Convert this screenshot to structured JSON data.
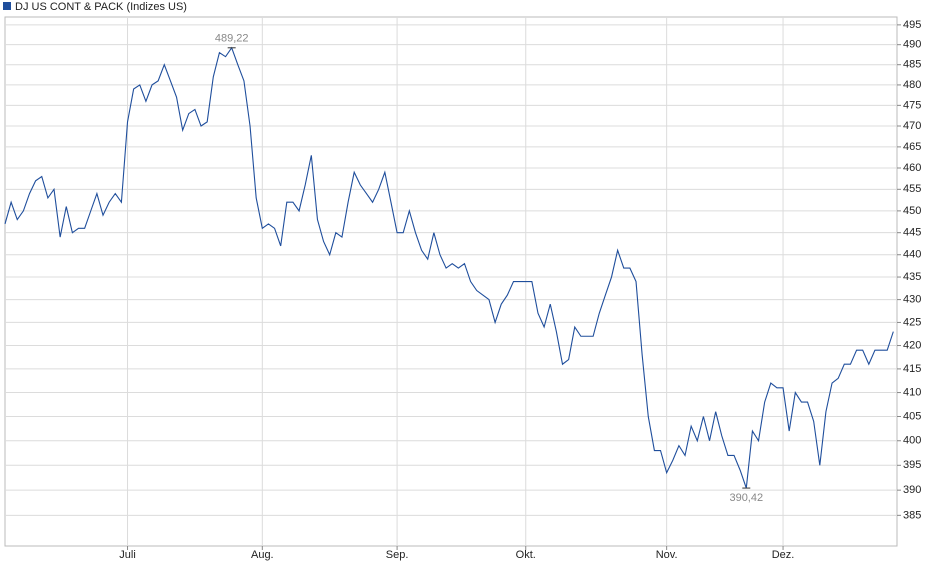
{
  "chart_data": {
    "type": "line",
    "legend_label": "DJ US CONT & PACK (Indizes US)",
    "log_scale": true,
    "grid": true,
    "x": [
      0,
      1,
      2,
      3,
      4,
      5,
      6,
      7,
      8,
      9,
      10,
      11,
      12,
      13,
      14,
      15,
      16,
      17,
      18,
      19,
      20,
      21,
      22,
      23,
      24,
      25,
      26,
      27,
      28,
      29,
      30,
      31,
      32,
      33,
      34,
      35,
      36,
      37,
      38,
      39,
      40,
      41,
      42,
      43,
      44,
      45,
      46,
      47,
      48,
      49,
      50,
      51,
      52,
      53,
      54,
      55,
      56,
      57,
      58,
      59,
      60,
      61,
      62,
      63,
      64,
      65,
      66,
      67,
      68,
      69,
      70,
      71,
      72,
      73,
      74,
      75,
      76,
      77,
      78,
      79,
      80,
      81,
      82,
      83,
      84,
      85,
      86,
      87,
      88,
      89,
      90,
      91,
      92,
      93,
      94,
      95,
      96,
      97,
      98,
      99,
      100,
      101,
      102,
      103,
      104,
      105,
      106,
      107,
      108,
      109,
      110,
      111,
      112,
      113,
      114,
      115,
      116,
      117,
      118,
      119,
      120,
      121,
      122,
      123,
      124,
      125,
      126,
      127,
      128,
      129,
      130,
      131,
      132,
      133,
      134,
      135,
      136,
      137,
      138,
      139,
      140,
      141,
      142,
      143,
      144,
      145
    ],
    "series": [
      {
        "name": "DJ US CONT & PACK (Indizes US)",
        "color": "#1f4e9c",
        "values": [
          447,
          452,
          448,
          450,
          454,
          457,
          458,
          453,
          455,
          444,
          451,
          445,
          446,
          446,
          450,
          454,
          449,
          452,
          454,
          452,
          471,
          479,
          480,
          476,
          480,
          481,
          485,
          481,
          477,
          469,
          473,
          474,
          470,
          471,
          482,
          488,
          487,
          489.22,
          485,
          481,
          470,
          453,
          446,
          447,
          446,
          442,
          452,
          452,
          450,
          456,
          463,
          448,
          443,
          440,
          445,
          444,
          452,
          459,
          456,
          454,
          452,
          455,
          459,
          452,
          445,
          445,
          450,
          445,
          441,
          439,
          445,
          440,
          437,
          438,
          437,
          438,
          434,
          432,
          431,
          430,
          425,
          429,
          431,
          434,
          434,
          434,
          434,
          427,
          424,
          429,
          423,
          416,
          417,
          424,
          422,
          422,
          422,
          427,
          431,
          435,
          441,
          437,
          437,
          434,
          418,
          405,
          398,
          398,
          393.5,
          396,
          399,
          397,
          403,
          400,
          405,
          400,
          406,
          401,
          397,
          397,
          394,
          390.42,
          402,
          400,
          408,
          412,
          411,
          411,
          402,
          410,
          408,
          408,
          404,
          395,
          406,
          412,
          413,
          416,
          416,
          419,
          419,
          416,
          419,
          419,
          419,
          423
        ]
      }
    ],
    "annotations": [
      {
        "x": 37,
        "label": "489,22",
        "position": "above"
      },
      {
        "x": 121,
        "label": "390,42",
        "position": "below"
      }
    ],
    "xlim": [
      0,
      145.6
    ],
    "xticks": [
      {
        "value": 20,
        "label": "Juli"
      },
      {
        "value": 42,
        "label": "Aug."
      },
      {
        "value": 64,
        "label": "Sep."
      },
      {
        "value": 85,
        "label": "Okt."
      },
      {
        "value": 108,
        "label": "Nov."
      },
      {
        "value": 127,
        "label": "Dez."
      }
    ],
    "ylim": [
      379,
      497
    ],
    "yticks": [
      385,
      390,
      395,
      400,
      405,
      410,
      415,
      420,
      425,
      430,
      435,
      440,
      445,
      450,
      455,
      460,
      465,
      470,
      475,
      480,
      485,
      490,
      495
    ]
  }
}
